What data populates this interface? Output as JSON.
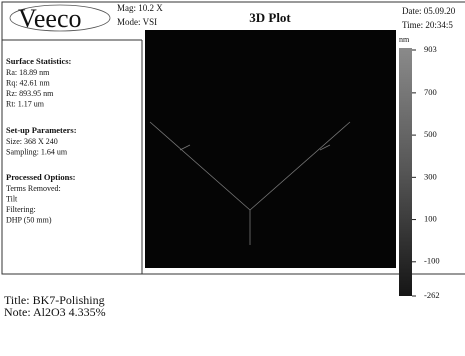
{
  "header": {
    "logo": "Veeco",
    "mag": "Mag: 10.2 X",
    "mode": "Mode: VSI",
    "title": "3D Plot",
    "date": "Date: 05.09.20",
    "time": "Time: 20:34:5"
  },
  "surface_statistics": {
    "heading": "Surface Statistics:",
    "items": [
      "Ra: 18.89 nm",
      "Rq: 42.61 nm",
      "Rz: 893.95 nm",
      "Rt: 1.17 um"
    ]
  },
  "setup": {
    "heading": "Set-up Parameters:",
    "items": [
      "Size: 368 X 240",
      "Sampling: 1.64 um"
    ]
  },
  "processed": {
    "heading": "Processed Options:",
    "items": [
      "Terms Removed:",
      "Tilt",
      "Filtering:",
      "DHP (50 mm)"
    ]
  },
  "colorbar": {
    "unit": "nm",
    "range": [
      -262,
      903
    ],
    "ticks": [
      903,
      700,
      500,
      300,
      100,
      -100,
      -262
    ]
  },
  "footer": {
    "title": "Title: BK7-Polishing",
    "note": "Note: Al2O3 4.335%"
  }
}
